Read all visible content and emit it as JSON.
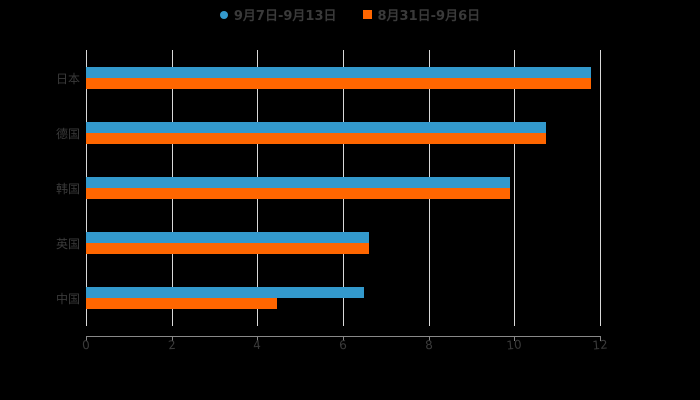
{
  "chart_data": {
    "type": "bar",
    "orientation": "horizontal",
    "title": "",
    "categories": [
      "日本",
      "德国",
      "韩国",
      "英国",
      "中国"
    ],
    "series": [
      {
        "name": "9月7日-9月13日",
        "color": "#3399CC",
        "values": [
          11.8,
          10.75,
          9.9,
          6.6,
          6.5
        ]
      },
      {
        "name": "8月31日-9月6日",
        "color": "#FF6600",
        "values": [
          11.8,
          10.75,
          9.9,
          6.6,
          4.45
        ]
      }
    ],
    "xlabel": "",
    "ylabel": "",
    "xlim": [
      0,
      12
    ],
    "xticks": [
      "0",
      "2",
      "4",
      "6",
      "8",
      "10",
      "12"
    ],
    "grid": true,
    "legend_position": "top"
  },
  "legend": {
    "s1": "9月7日-9月13日",
    "s2": "8月31日-9月6日"
  }
}
